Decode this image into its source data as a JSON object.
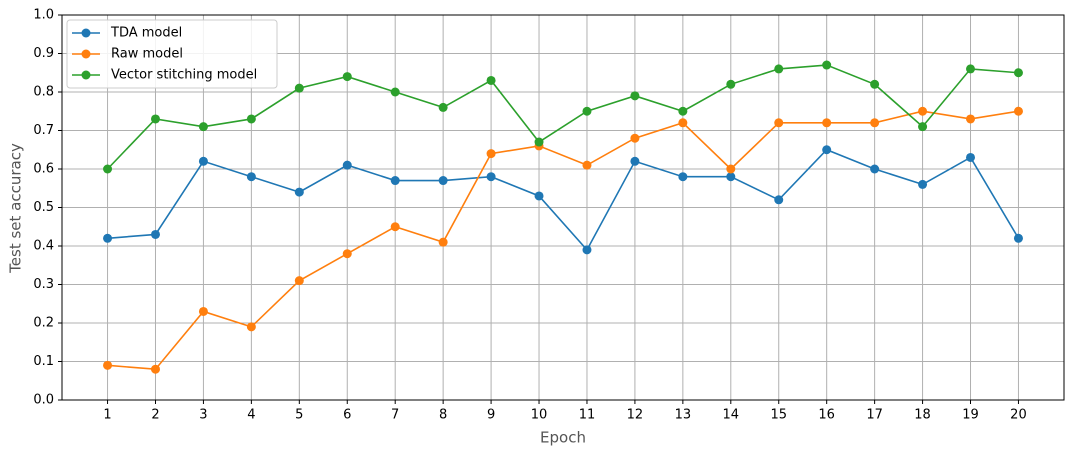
{
  "chart_data": {
    "type": "line",
    "xlabel": "Epoch",
    "ylabel": "Test set accuracy",
    "x": [
      1,
      2,
      3,
      4,
      5,
      6,
      7,
      8,
      9,
      10,
      11,
      12,
      13,
      14,
      15,
      16,
      17,
      18,
      19,
      20
    ],
    "series": [
      {
        "name": "TDA model",
        "color": "#1f77b4",
        "values": [
          0.42,
          0.43,
          0.62,
          0.58,
          0.54,
          0.61,
          0.57,
          0.57,
          0.58,
          0.53,
          0.39,
          0.62,
          0.58,
          0.58,
          0.52,
          0.65,
          0.6,
          0.56,
          0.63,
          0.42
        ]
      },
      {
        "name": "Raw model",
        "color": "#ff7f0e",
        "values": [
          0.09,
          0.08,
          0.23,
          0.19,
          0.31,
          0.38,
          0.45,
          0.41,
          0.64,
          0.66,
          0.61,
          0.68,
          0.72,
          0.6,
          0.72,
          0.72,
          0.72,
          0.75,
          0.73,
          0.75
        ]
      },
      {
        "name": "Vector stitching model",
        "color": "#2ca02c",
        "values": [
          0.6,
          0.73,
          0.71,
          0.73,
          0.81,
          0.84,
          0.8,
          0.76,
          0.83,
          0.67,
          0.75,
          0.79,
          0.75,
          0.82,
          0.86,
          0.87,
          0.82,
          0.71,
          0.86,
          0.85
        ]
      }
    ],
    "xlim": [
      0.05,
      20.95
    ],
    "xticks": [
      1,
      2,
      3,
      4,
      5,
      6,
      7,
      8,
      9,
      10,
      11,
      12,
      13,
      14,
      15,
      16,
      17,
      18,
      19,
      20
    ],
    "ylim": [
      0,
      1
    ],
    "yticks": [
      {
        "value": 0,
        "label": "0.0"
      },
      0.1,
      0.2,
      0.3,
      0.4,
      0.5,
      0.6,
      0.7,
      0.8,
      0.9,
      {
        "value": 1,
        "label": "1.0"
      }
    ],
    "grid": true,
    "legend": "upper-left"
  }
}
